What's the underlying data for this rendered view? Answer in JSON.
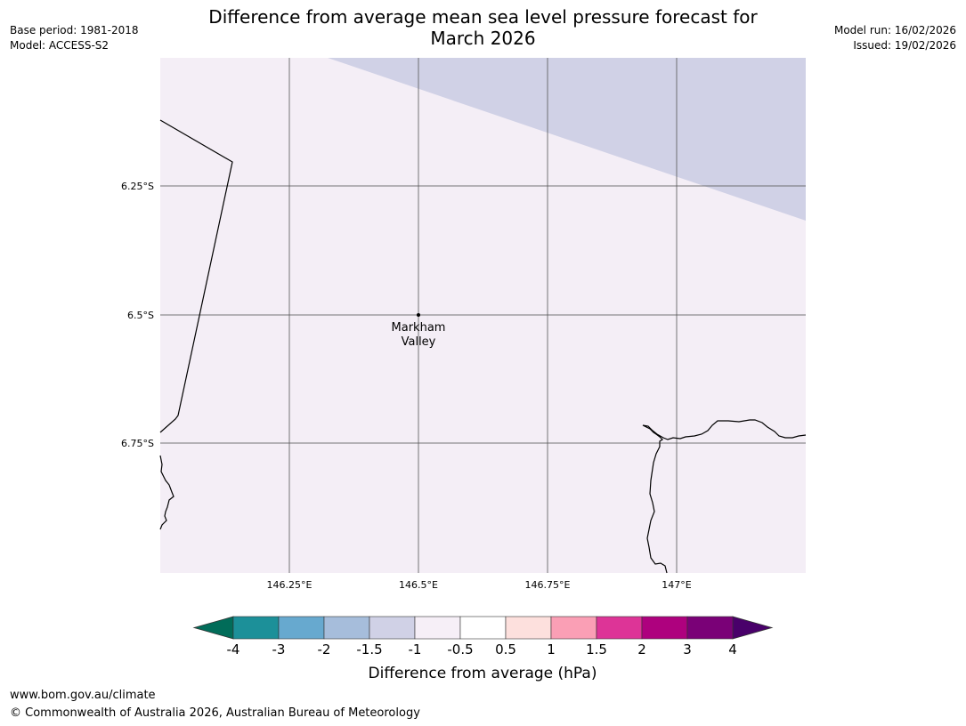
{
  "header": {
    "base_period": "Base period: 1981-2018",
    "model": "Model: ACCESS-S2",
    "model_run": "Model run: 16/02/2026",
    "issued": "Issued: 19/02/2026",
    "title_line1": "Difference from average mean sea level pressure forecast for",
    "title_line2": "March 2026"
  },
  "map": {
    "lat_labels": [
      "6.25°S",
      "6.5°S",
      "6.75°S"
    ],
    "lon_labels": [
      "146.25°E",
      "146.5°E",
      "146.75°E",
      "147°E"
    ],
    "place": {
      "line1": "Markham",
      "line2": "Valley"
    },
    "colors": {
      "background_fill": "#f4eef6",
      "shaded_fill": "#d0d1e6",
      "grid": "#555555"
    }
  },
  "colorbar": {
    "title": "Difference from average (hPa)",
    "ticks": [
      "-4",
      "-3",
      "-2",
      "-1.5",
      "-1",
      "-0.5",
      "0.5",
      "1",
      "1.5",
      "2",
      "3",
      "4"
    ],
    "colors": [
      "#016c59",
      "#1c9099",
      "#67a9cf",
      "#a6bddb",
      "#d0d1e6",
      "#f6eff7",
      "#ffffff",
      "#fde0dd",
      "#fa9fb5",
      "#dd3497",
      "#ae017e",
      "#7a0177",
      "#49006a"
    ]
  },
  "footer": {
    "url": "www.bom.gov.au/climate",
    "copyright": "© Commonwealth of Australia 2026, Australian Bureau of Meteorology"
  }
}
